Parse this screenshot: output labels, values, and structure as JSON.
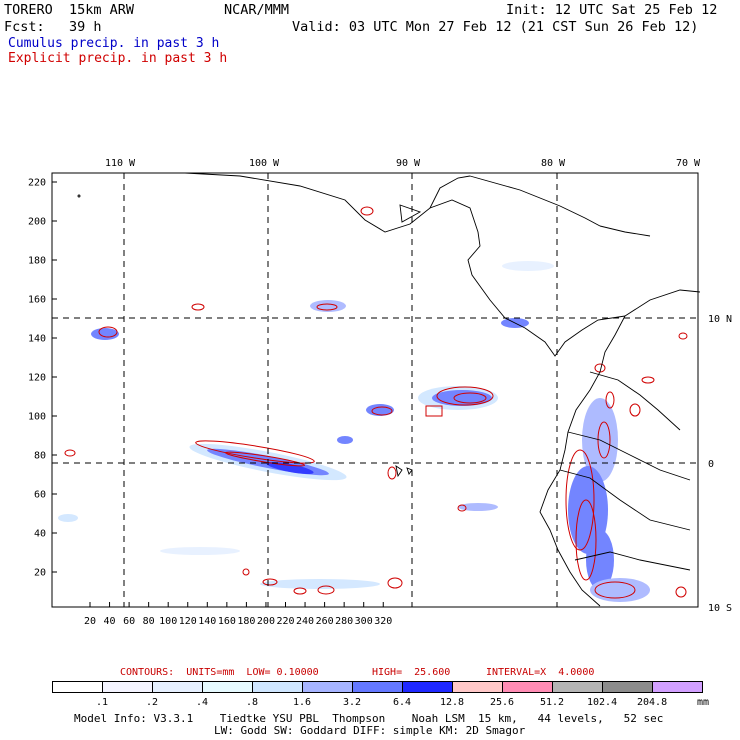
{
  "header": {
    "model": "TORERO  15km ARW",
    "org": "NCAR/MMM",
    "init": "Init: 12 UTC Sat 25 Feb 12",
    "fcst": "Fcst:   39 h",
    "valid": "Valid: 03 UTC Mon 27 Feb 12 (21 CST Sun 26 Feb 12)",
    "legend_cumulus": "Cumulus precip. in past 3 h",
    "legend_explicit": "Explicit precip. in past 3 h"
  },
  "colors": {
    "cumulus": "#0000c8",
    "explicit": "#d00000",
    "contour_label": "#c80000"
  },
  "map": {
    "top_lon_labels": [
      "110 W",
      "100 W",
      "90 W",
      "80 W",
      "70 W"
    ],
    "right_lat_labels": [
      "10 N",
      "0",
      "10 S"
    ],
    "left_y_ticks": [
      "220",
      "200",
      "180",
      "160",
      "140",
      "120",
      "100",
      "80",
      "60",
      "40",
      "20"
    ],
    "bottom_x_ticks": [
      "20",
      "40",
      "60",
      "80",
      "100",
      "120",
      "140",
      "160",
      "180",
      "200",
      "220",
      "240",
      "260",
      "280",
      "300",
      "320"
    ]
  },
  "contours": {
    "label": "CONTOURS:  UNITS=mm  LOW= 0.10000",
    "high": "HIGH=  25.600",
    "interval": "INTERVAL=X  4.0000"
  },
  "colorbar": {
    "labels": [
      ".1",
      ".2",
      ".4",
      ".8",
      "1.6",
      "3.2",
      "6.4",
      "12.8",
      "25.6",
      "51.2",
      "102.4",
      "204.8"
    ],
    "unit": "mm",
    "colors": [
      "#ffffff",
      "#f4f4ff",
      "#e6f0ff",
      "#e6faff",
      "#cfe6ff",
      "#a6b4ff",
      "#6478ff",
      "#1e28ff",
      "#ffc8c8",
      "#ff8cb4",
      "#b4b4b4",
      "#8c8c8c",
      "#d2a0ff"
    ]
  },
  "footer": {
    "line1": "Model Info: V3.3.1    Tiedtke YSU PBL  Thompson    Noah LSM  15 km,   44 levels,   52 sec",
    "line2": "LW: Godd SW: Goddard DIFF: simple KM: 2D Smagor"
  }
}
